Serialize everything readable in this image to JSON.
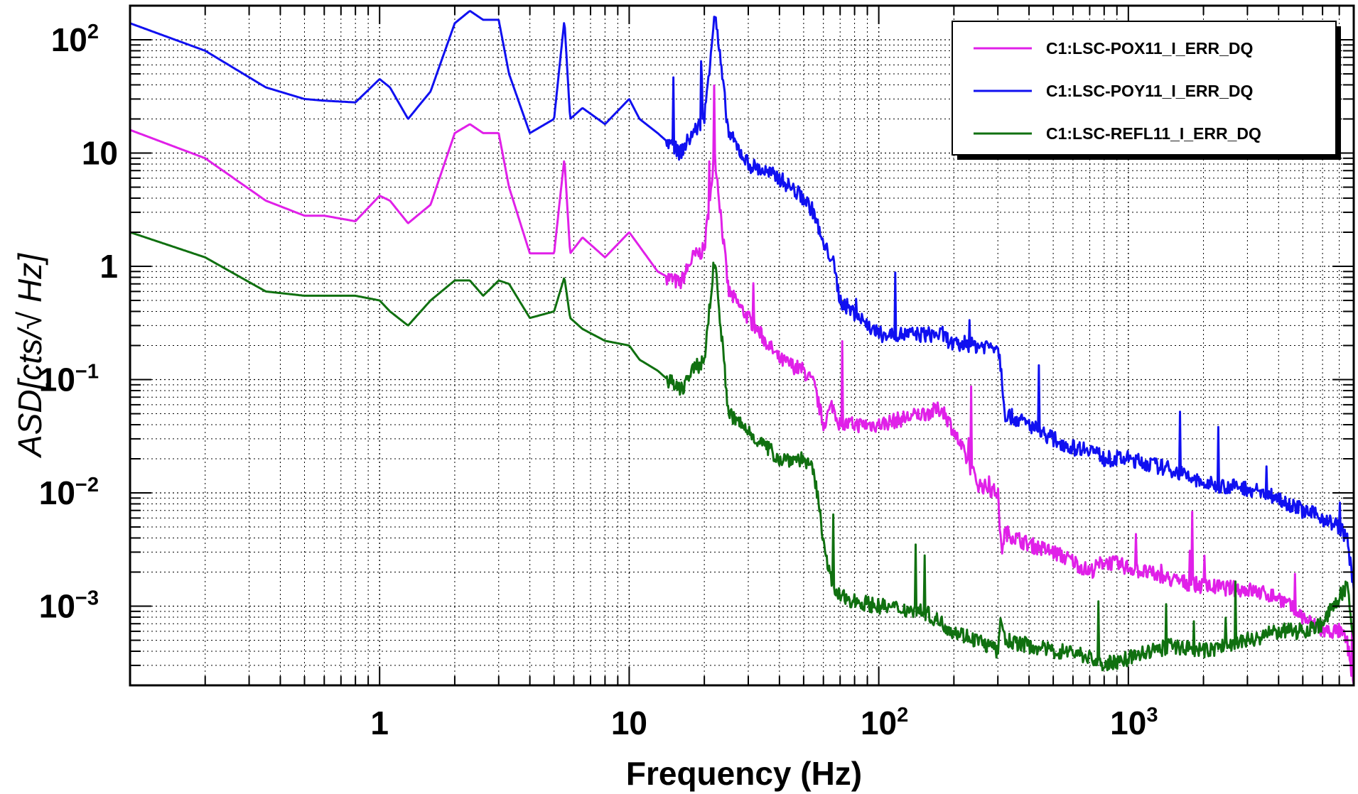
{
  "chart_data": {
    "type": "line",
    "xscale": "log",
    "yscale": "log",
    "xlim": [
      0.1,
      8000
    ],
    "ylim": [
      0.0002,
      200
    ],
    "grid": true,
    "legend_position": "top-right",
    "xlabel": "Frequency (Hz)",
    "ylabel": "ASD[cts/√ Hz]",
    "xticks": [
      {
        "value": 1,
        "base": "1",
        "exp": ""
      },
      {
        "value": 10,
        "base": "10",
        "exp": ""
      },
      {
        "value": 100,
        "base": "10",
        "exp": "2"
      },
      {
        "value": 1000,
        "base": "10",
        "exp": "3"
      }
    ],
    "yticks": [
      {
        "value": 100,
        "base": "10",
        "exp": "2"
      },
      {
        "value": 10,
        "base": "10",
        "exp": ""
      },
      {
        "value": 1,
        "base": "1",
        "exp": ""
      },
      {
        "value": 0.1,
        "base": "10",
        "exp": "−1"
      },
      {
        "value": 0.01,
        "base": "10",
        "exp": "−2"
      },
      {
        "value": 0.001,
        "base": "10",
        "exp": "−3"
      }
    ],
    "series": [
      {
        "name": "C1:LSC-POX11_I_ERR_DQ",
        "color": "#e020e8",
        "x": [
          0.1,
          0.2,
          0.35,
          0.5,
          0.6,
          0.8,
          1.0,
          1.1,
          1.3,
          1.6,
          2.0,
          2.3,
          2.6,
          3.0,
          3.3,
          4.0,
          5.0,
          5.5,
          5.8,
          6.5,
          8.0,
          10,
          11,
          13,
          16,
          18,
          20,
          22,
          25,
          30,
          40,
          50,
          55,
          60,
          65,
          70,
          100,
          150,
          180,
          200,
          250,
          300,
          310,
          320,
          400,
          500,
          600,
          700,
          800,
          1000,
          1500,
          2000,
          3000,
          4000,
          5000,
          6000,
          7000,
          7500,
          8000
        ],
        "y": [
          16,
          9,
          3.8,
          2.8,
          2.8,
          2.5,
          4.2,
          3.8,
          2.4,
          3.5,
          15,
          18,
          15,
          15,
          5,
          1.3,
          1.3,
          9,
          1.3,
          1.8,
          1.2,
          2,
          1.5,
          0.9,
          0.7,
          1.2,
          1.4,
          10,
          0.6,
          0.35,
          0.15,
          0.12,
          0.09,
          0.04,
          0.06,
          0.04,
          0.04,
          0.05,
          0.055,
          0.035,
          0.012,
          0.01,
          0.003,
          0.0045,
          0.0035,
          0.003,
          0.0025,
          0.002,
          0.0025,
          0.0022,
          0.0017,
          0.0015,
          0.0014,
          0.0012,
          0.0008,
          0.0006,
          0.0006,
          0.0005,
          0.0002
        ]
      },
      {
        "name": "C1:LSC-POY11_I_ERR_DQ",
        "color": "#1010f0",
        "x": [
          0.1,
          0.2,
          0.35,
          0.5,
          0.6,
          0.8,
          1.0,
          1.1,
          1.3,
          1.6,
          2.0,
          2.3,
          2.6,
          3.0,
          3.3,
          4.0,
          5.0,
          5.5,
          5.8,
          6.5,
          8.0,
          10,
          11,
          13,
          16,
          18,
          20,
          22,
          25,
          30,
          40,
          50,
          55,
          60,
          65,
          70,
          100,
          150,
          180,
          200,
          250,
          300,
          310,
          320,
          400,
          500,
          600,
          700,
          800,
          1000,
          1500,
          2000,
          3000,
          4000,
          5000,
          6000,
          7000,
          7500,
          8000
        ],
        "y": [
          140,
          80,
          38,
          30,
          29,
          28,
          45,
          38,
          20,
          35,
          140,
          180,
          150,
          150,
          50,
          15,
          20,
          150,
          20,
          25,
          18,
          30,
          20,
          15,
          10,
          15,
          20,
          180,
          15,
          8,
          6,
          4,
          3,
          1.5,
          1.2,
          0.5,
          0.25,
          0.25,
          0.25,
          0.2,
          0.2,
          0.2,
          0.12,
          0.05,
          0.04,
          0.03,
          0.025,
          0.025,
          0.02,
          0.02,
          0.016,
          0.012,
          0.011,
          0.009,
          0.007,
          0.006,
          0.005,
          0.004,
          0.0015
        ]
      },
      {
        "name": "C1:LSC-REFL11_I_ERR_DQ",
        "color": "#107010",
        "x": [
          0.1,
          0.2,
          0.35,
          0.5,
          0.6,
          0.8,
          1.0,
          1.1,
          1.3,
          1.6,
          2.0,
          2.3,
          2.6,
          3.0,
          3.3,
          4.0,
          5.0,
          5.5,
          5.8,
          6.5,
          8.0,
          10,
          11,
          13,
          16,
          18,
          20,
          22,
          25,
          30,
          40,
          50,
          55,
          60,
          65,
          70,
          100,
          150,
          180,
          200,
          250,
          300,
          310,
          320,
          400,
          500,
          600,
          700,
          800,
          1000,
          1500,
          2000,
          3000,
          4000,
          5000,
          6000,
          7000,
          7500,
          8000
        ],
        "y": [
          2,
          1.2,
          0.6,
          0.55,
          0.55,
          0.55,
          0.5,
          0.4,
          0.3,
          0.5,
          0.75,
          0.75,
          0.55,
          0.75,
          0.7,
          0.35,
          0.4,
          0.8,
          0.35,
          0.28,
          0.22,
          0.2,
          0.15,
          0.12,
          0.08,
          0.12,
          0.15,
          1.2,
          0.05,
          0.035,
          0.02,
          0.02,
          0.015,
          0.004,
          0.0015,
          0.0012,
          0.001,
          0.0009,
          0.0007,
          0.0006,
          0.0005,
          0.0004,
          0.0008,
          0.0005,
          0.00045,
          0.0004,
          0.0004,
          0.00035,
          0.0003,
          0.00035,
          0.00045,
          0.0004,
          0.0005,
          0.0006,
          0.0006,
          0.0007,
          0.0012,
          0.0015,
          0.0005
        ]
      }
    ]
  }
}
